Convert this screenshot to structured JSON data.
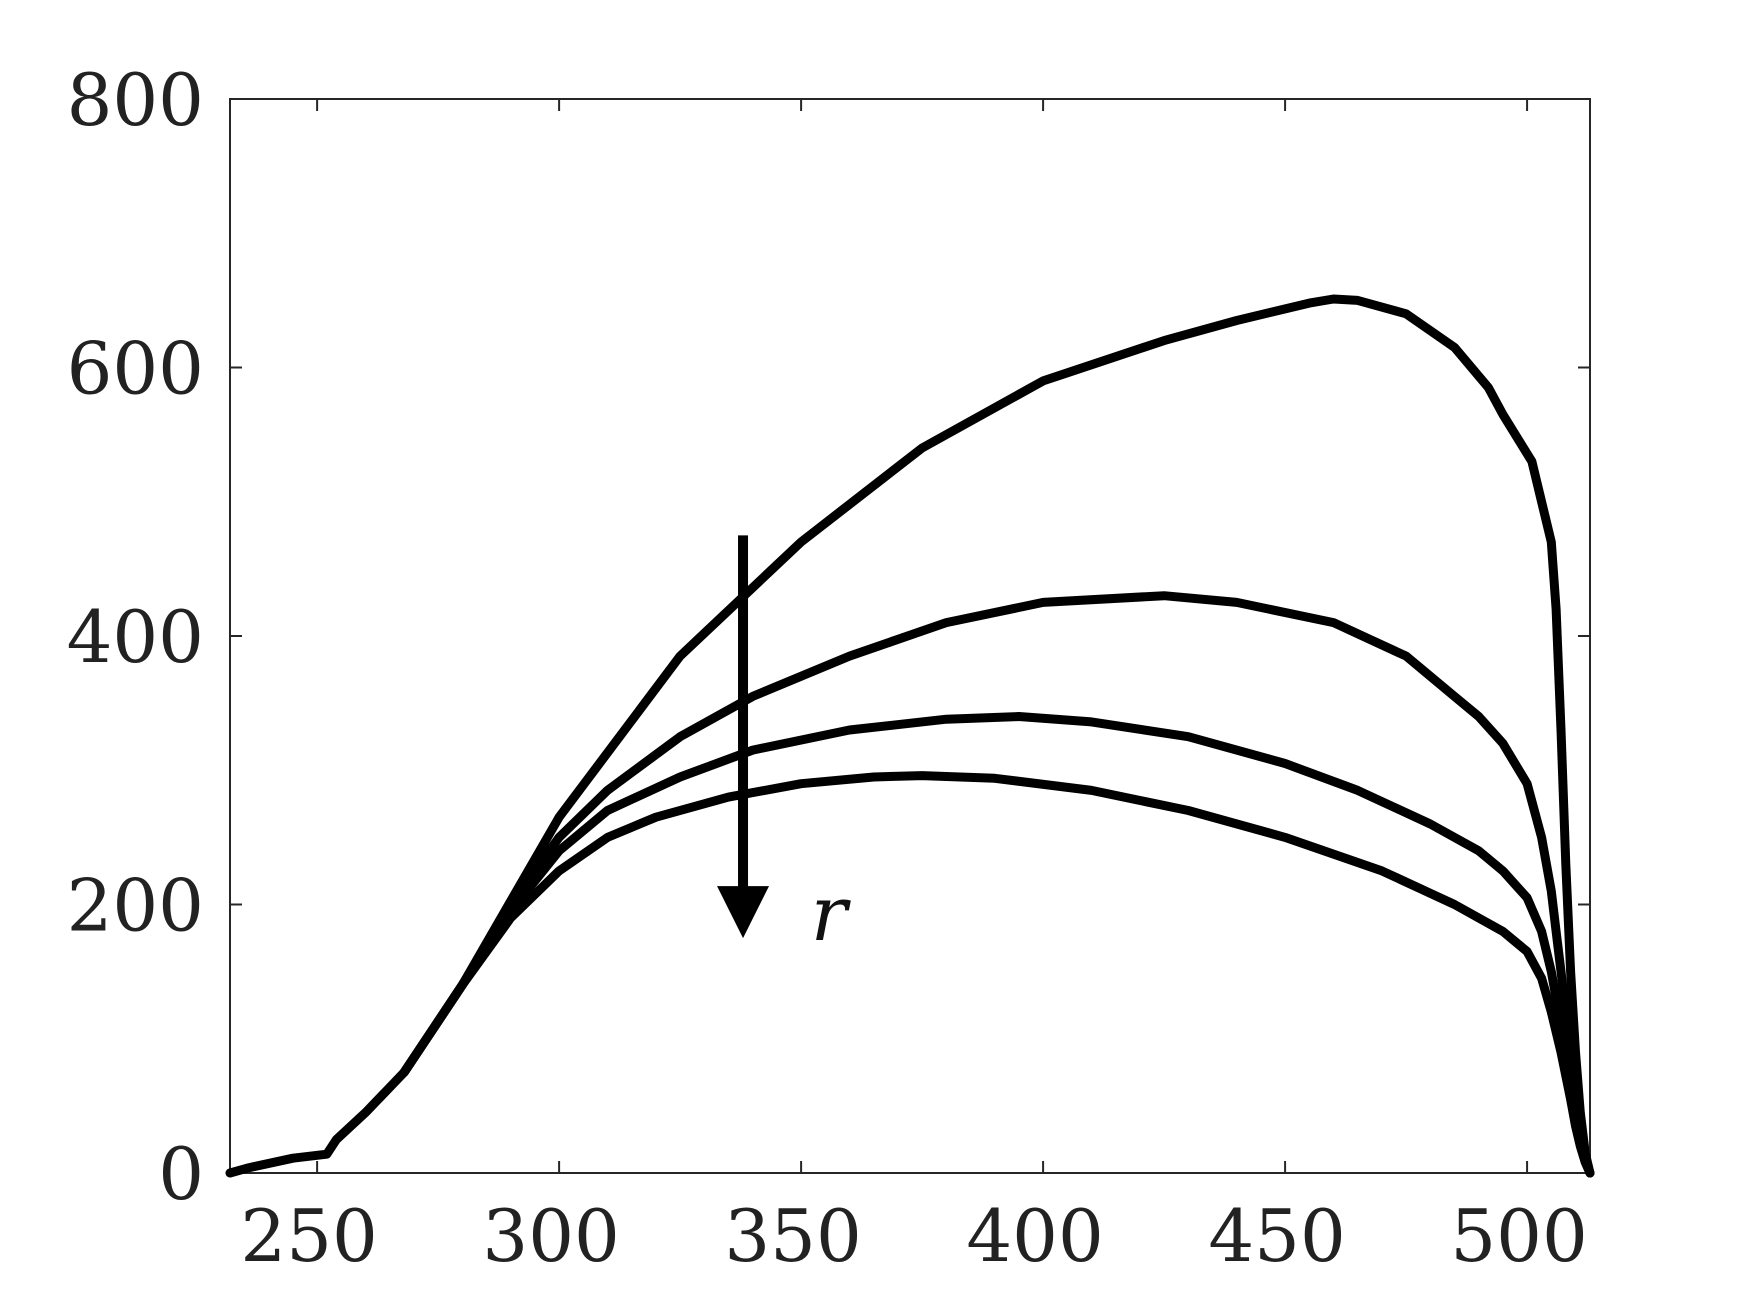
{
  "chart_data": {
    "type": "line",
    "title": "",
    "xlabel": "",
    "ylabel": "",
    "xlim": [
      232,
      513
    ],
    "ylim": [
      0,
      800
    ],
    "x_ticks": [
      250,
      300,
      350,
      400,
      450,
      500
    ],
    "y_ticks": [
      0,
      200,
      400,
      600,
      800
    ],
    "x_tick_labels": [
      "250",
      "300",
      "350",
      "400",
      "450",
      "500"
    ],
    "y_tick_labels": [
      "0",
      "200",
      "400",
      "600",
      "800"
    ],
    "grid": false,
    "legend": "none",
    "line_color": "#000000",
    "series": [
      {
        "x": [
          232,
          236,
          245,
          252,
          254,
          260,
          268,
          280,
          300,
          325,
          350,
          375,
          400,
          425,
          440,
          455,
          460,
          465,
          475,
          485,
          492,
          495,
          501,
          503,
          505,
          506,
          507,
          508,
          509,
          510,
          511,
          512,
          513
        ],
        "y": [
          0,
          4,
          11,
          14,
          25,
          45,
          75,
          140,
          265,
          385,
          470,
          540,
          590,
          620,
          635,
          648,
          651,
          650,
          640,
          615,
          585,
          565,
          530,
          500,
          470,
          420,
          330,
          230,
          150,
          90,
          45,
          15,
          0
        ]
      },
      {
        "x": [
          268,
          280,
          290,
          300,
          310,
          325,
          340,
          360,
          380,
          400,
          425,
          440,
          460,
          475,
          485,
          490,
          495,
          500,
          503,
          505,
          506,
          507,
          508,
          509,
          510,
          511,
          512,
          513
        ],
        "y": [
          75,
          140,
          200,
          250,
          285,
          325,
          355,
          385,
          410,
          425,
          430,
          425,
          410,
          385,
          355,
          340,
          320,
          290,
          250,
          210,
          180,
          150,
          120,
          90,
          60,
          30,
          10,
          0
        ]
      },
      {
        "x": [
          268,
          280,
          290,
          300,
          310,
          325,
          340,
          360,
          380,
          395,
          410,
          430,
          450,
          465,
          480,
          490,
          495,
          500,
          503,
          505,
          507,
          509,
          510,
          511,
          512,
          513
        ],
        "y": [
          75,
          140,
          195,
          240,
          270,
          295,
          315,
          330,
          338,
          340,
          336,
          325,
          305,
          285,
          260,
          240,
          225,
          205,
          180,
          150,
          110,
          70,
          45,
          25,
          10,
          0
        ]
      },
      {
        "x": [
          268,
          280,
          290,
          300,
          310,
          320,
          335,
          350,
          365,
          375,
          390,
          410,
          430,
          450,
          470,
          485,
          495,
          500,
          503,
          505,
          507,
          509,
          510,
          511,
          512,
          513
        ],
        "y": [
          75,
          140,
          190,
          225,
          250,
          265,
          280,
          290,
          295,
          296,
          294,
          285,
          270,
          250,
          225,
          200,
          180,
          165,
          145,
          120,
          90,
          55,
          35,
          20,
          8,
          0
        ]
      }
    ],
    "annotation": {
      "label": "r",
      "arrow_x": 338,
      "arrow_from_y": 475,
      "arrow_to_y": 175,
      "label_x": 352,
      "label_y": 190
    }
  }
}
